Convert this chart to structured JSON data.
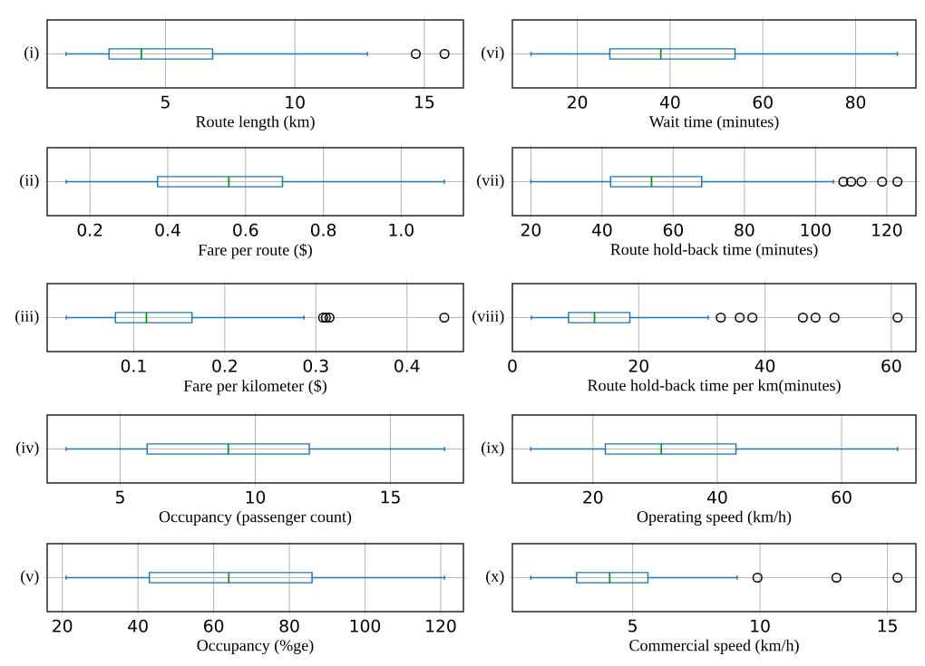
{
  "chart_data": [
    {
      "type": "box",
      "orientation": "horizontal",
      "color": "#1f77b4",
      "grid": true,
      "categories": [
        "(i)"
      ],
      "xlabel": "Route length (km)",
      "xlim": [
        0.43,
        16.51
      ],
      "xticks": [
        5,
        10,
        15
      ],
      "boxes": [
        {
          "low": 1.16,
          "q1": 2.82,
          "median": 4.07,
          "q3": 6.82,
          "high": 12.8,
          "outliers": [
            14.67,
            15.78
          ]
        }
      ]
    },
    {
      "type": "box",
      "orientation": "horizontal",
      "color": "#1f77b4",
      "grid": true,
      "categories": [
        "(ii)"
      ],
      "xlabel": "Fare per route ($)",
      "xlim": [
        0.09,
        1.16
      ],
      "xticks": [
        0.2,
        0.4,
        0.6,
        0.8,
        {
          "value": 1.0,
          "label": "1.0"
        }
      ],
      "boxes": [
        {
          "low": 0.139,
          "q1": 0.374,
          "median": 0.557,
          "q3": 0.695,
          "high": 1.111
        }
      ]
    },
    {
      "type": "box",
      "orientation": "horizontal",
      "color": "#1f77b4",
      "grid": true,
      "categories": [
        "(iii)"
      ],
      "xlabel": "Fare per kilometer ($)",
      "xlim": [
        0.005,
        0.462
      ],
      "xticks": [
        0.1,
        0.2,
        0.3,
        0.4
      ],
      "boxes": [
        {
          "low": 0.026,
          "q1": 0.08,
          "median": 0.114,
          "q3": 0.164,
          "high": 0.287,
          "outliers": [
            0.308,
            0.311,
            0.315,
            0.441
          ]
        }
      ]
    },
    {
      "type": "box",
      "orientation": "horizontal",
      "color": "#1f77b4",
      "grid": true,
      "categories": [
        "(iv)"
      ],
      "xlabel": "Occupancy (passenger count)",
      "xlim": [
        2.3,
        17.7
      ],
      "xticks": [
        5,
        10,
        15
      ],
      "boxes": [
        {
          "low": 3,
          "q1": 6,
          "median": 9,
          "q3": 12,
          "high": 17
        }
      ]
    },
    {
      "type": "box",
      "orientation": "horizontal",
      "color": "#1f77b4",
      "grid": true,
      "categories": [
        "(v)"
      ],
      "xlabel": "Occupancy (%ge)",
      "xlim": [
        16,
        126
      ],
      "xticks": [
        20,
        40,
        60,
        80,
        100,
        120
      ],
      "boxes": [
        {
          "low": 21,
          "q1": 43,
          "median": 64,
          "q3": 86,
          "high": 121
        }
      ]
    },
    {
      "type": "box",
      "orientation": "horizontal",
      "color": "#1f77b4",
      "grid": true,
      "categories": [
        "(vi)"
      ],
      "xlabel": "Wait time (minutes)",
      "xlim": [
        6,
        93
      ],
      "xticks": [
        20,
        40,
        60,
        80
      ],
      "boxes": [
        {
          "low": 10,
          "q1": 27,
          "median": 38,
          "q3": 54,
          "high": 89
        }
      ]
    },
    {
      "type": "box",
      "orientation": "horizontal",
      "color": "#1f77b4",
      "grid": true,
      "categories": [
        "(vii)"
      ],
      "xlabel": "Route hold-back time (minutes)",
      "xlim": [
        14.8,
        128.2
      ],
      "xticks": [
        20,
        40,
        60,
        80,
        100,
        120
      ],
      "boxes": [
        {
          "low": 20,
          "q1": 42.4,
          "median": 53.9,
          "q3": 68,
          "high": 105,
          "outliers": [
            107.8,
            110,
            112.9,
            118.7,
            123
          ]
        }
      ]
    },
    {
      "type": "box",
      "orientation": "horizontal",
      "color": "#1f77b4",
      "grid": true,
      "categories": [
        "(viii)"
      ],
      "xlabel": "Route hold-back time per km(minutes)",
      "xlim": [
        0,
        63.9
      ],
      "xticks": [
        0,
        20,
        40,
        60
      ],
      "boxes": [
        {
          "low": 3,
          "q1": 8.9,
          "median": 13,
          "q3": 18.6,
          "high": 31,
          "outliers": [
            33,
            36,
            38,
            46,
            48,
            51,
            61
          ]
        }
      ]
    },
    {
      "type": "box",
      "orientation": "horizontal",
      "color": "#1f77b4",
      "grid": true,
      "categories": [
        "(ix)"
      ],
      "xlabel": "Operating speed (km/h)",
      "xlim": [
        7.05,
        71.95
      ],
      "xticks": [
        20,
        40,
        60
      ],
      "boxes": [
        {
          "low": 10,
          "q1": 22,
          "median": 31,
          "q3": 43,
          "high": 69
        }
      ]
    },
    {
      "type": "box",
      "orientation": "horizontal",
      "color": "#1f77b4",
      "grid": true,
      "categories": [
        "(x)"
      ],
      "xlabel": "Commercial speed (km/h)",
      "xlim": [
        0.28,
        16.12
      ],
      "xticks": [
        5,
        10,
        15
      ],
      "boxes": [
        {
          "low": 1,
          "q1": 2.8,
          "median": 4.1,
          "q3": 5.6,
          "high": 9.1,
          "outliers": [
            9.9,
            13,
            15.4
          ]
        }
      ]
    }
  ]
}
